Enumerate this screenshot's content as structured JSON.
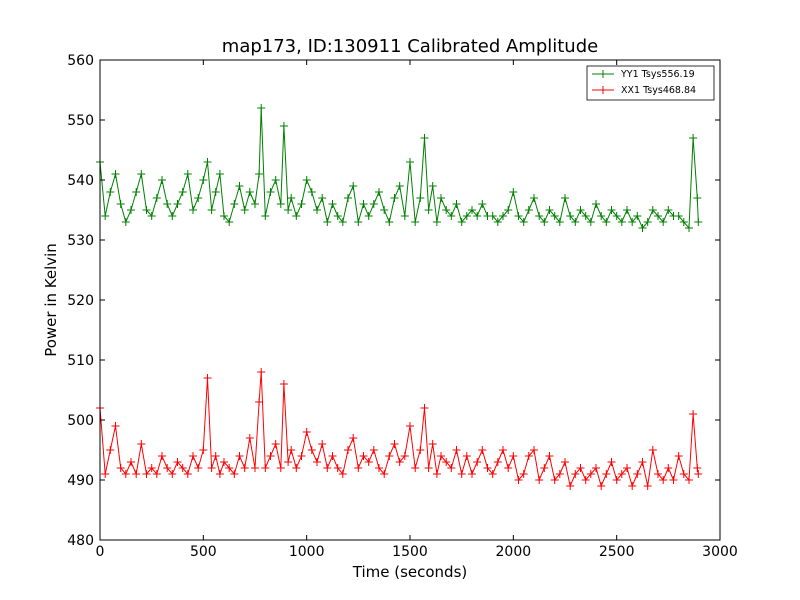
{
  "chart_data": {
    "type": "line",
    "title": "map173, ID:130911 Calibrated Amplitude",
    "xlabel": "Time (seconds)",
    "ylabel": "Power in Kelvin",
    "xlim": [
      0,
      3000
    ],
    "ylim": [
      480,
      560
    ],
    "xticks": [
      0,
      500,
      1000,
      1500,
      2000,
      2500,
      3000
    ],
    "xtick_labels": [
      "0",
      "500",
      "1000",
      "1500",
      "2000",
      "2500",
      "3000"
    ],
    "yticks": [
      480,
      490,
      500,
      510,
      520,
      530,
      540,
      550,
      560
    ],
    "ytick_labels": [
      "480",
      "490",
      "500",
      "510",
      "520",
      "530",
      "540",
      "550",
      "560"
    ],
    "grid": false,
    "legend_position": "upper-right",
    "marker": "+",
    "series": [
      {
        "name": "YY1 Tsys556.19",
        "color": "#008000",
        "x": [
          0,
          25,
          50,
          75,
          100,
          125,
          150,
          175,
          200,
          225,
          250,
          275,
          300,
          325,
          350,
          375,
          400,
          425,
          450,
          475,
          500,
          520,
          540,
          560,
          580,
          600,
          625,
          650,
          675,
          700,
          725,
          750,
          770,
          780,
          800,
          825,
          850,
          875,
          890,
          910,
          925,
          950,
          975,
          1000,
          1025,
          1050,
          1075,
          1100,
          1125,
          1150,
          1175,
          1200,
          1225,
          1250,
          1275,
          1300,
          1325,
          1350,
          1375,
          1400,
          1425,
          1450,
          1475,
          1500,
          1525,
          1550,
          1570,
          1590,
          1610,
          1630,
          1650,
          1675,
          1700,
          1725,
          1750,
          1775,
          1800,
          1825,
          1850,
          1875,
          1900,
          1925,
          1950,
          1975,
          2000,
          2025,
          2050,
          2075,
          2100,
          2125,
          2150,
          2175,
          2200,
          2225,
          2250,
          2275,
          2300,
          2325,
          2350,
          2375,
          2400,
          2425,
          2450,
          2475,
          2500,
          2525,
          2550,
          2575,
          2600,
          2625,
          2650,
          2675,
          2700,
          2725,
          2750,
          2775,
          2800,
          2825,
          2850,
          2870,
          2890,
          2895
        ],
        "y": [
          543,
          534,
          538,
          541,
          536,
          533,
          535,
          538,
          541,
          535,
          534,
          537,
          540,
          536,
          534,
          536,
          538,
          541,
          535,
          537,
          540,
          543,
          535,
          538,
          541,
          534,
          533,
          536,
          539,
          535,
          538,
          536,
          541,
          552,
          534,
          538,
          540,
          536,
          549,
          535,
          537,
          534,
          536,
          540,
          538,
          535,
          537,
          533,
          536,
          534,
          533,
          537,
          539,
          533,
          536,
          534,
          536,
          538,
          535,
          533,
          537,
          539,
          534,
          543,
          533,
          537,
          547,
          535,
          539,
          533,
          537,
          535,
          534,
          536,
          533,
          534,
          535,
          534,
          536,
          534,
          534,
          533,
          534,
          535,
          538,
          534,
          533,
          535,
          537,
          534,
          533,
          535,
          534,
          533,
          537,
          534,
          533,
          535,
          534,
          533,
          536,
          534,
          533,
          535,
          534,
          533,
          535,
          533,
          534,
          532,
          533,
          535,
          534,
          533,
          535,
          534,
          534,
          533,
          532,
          547,
          537,
          533
        ]
      },
      {
        "name": "XX1 Tsys468.84",
        "color": "#ff0000",
        "x": [
          0,
          25,
          50,
          75,
          100,
          125,
          150,
          175,
          200,
          225,
          250,
          275,
          300,
          325,
          350,
          375,
          400,
          425,
          450,
          475,
          500,
          520,
          540,
          560,
          580,
          600,
          625,
          650,
          675,
          700,
          725,
          750,
          770,
          780,
          800,
          825,
          850,
          875,
          890,
          910,
          925,
          950,
          975,
          1000,
          1025,
          1050,
          1075,
          1100,
          1125,
          1150,
          1175,
          1200,
          1225,
          1250,
          1275,
          1300,
          1325,
          1350,
          1375,
          1400,
          1425,
          1450,
          1475,
          1500,
          1525,
          1550,
          1570,
          1590,
          1610,
          1630,
          1650,
          1675,
          1700,
          1725,
          1750,
          1775,
          1800,
          1825,
          1850,
          1875,
          1900,
          1925,
          1950,
          1975,
          2000,
          2025,
          2050,
          2075,
          2100,
          2125,
          2150,
          2175,
          2200,
          2225,
          2250,
          2275,
          2300,
          2325,
          2350,
          2375,
          2400,
          2425,
          2450,
          2475,
          2500,
          2525,
          2550,
          2575,
          2600,
          2625,
          2650,
          2675,
          2700,
          2725,
          2750,
          2775,
          2800,
          2825,
          2850,
          2870,
          2890,
          2895
        ],
        "y": [
          502,
          491,
          495,
          499,
          492,
          491,
          493,
          491,
          496,
          491,
          492,
          491,
          494,
          492,
          491,
          493,
          492,
          491,
          494,
          492,
          495,
          507,
          492,
          494,
          491,
          493,
          492,
          491,
          494,
          492,
          497,
          492,
          503,
          508,
          492,
          494,
          496,
          492,
          506,
          493,
          495,
          492,
          494,
          498,
          495,
          493,
          496,
          492,
          494,
          492,
          491,
          495,
          497,
          492,
          494,
          493,
          495,
          492,
          491,
          494,
          496,
          493,
          494,
          499,
          492,
          495,
          502,
          492,
          496,
          491,
          494,
          493,
          492,
          495,
          491,
          494,
          491,
          493,
          495,
          492,
          491,
          493,
          495,
          492,
          494,
          490,
          491,
          494,
          495,
          490,
          492,
          494,
          490,
          491,
          493,
          489,
          491,
          492,
          490,
          491,
          492,
          489,
          491,
          493,
          490,
          491,
          492,
          489,
          491,
          493,
          489,
          495,
          491,
          490,
          492,
          490,
          494,
          491,
          490,
          501,
          492,
          491
        ]
      }
    ]
  }
}
